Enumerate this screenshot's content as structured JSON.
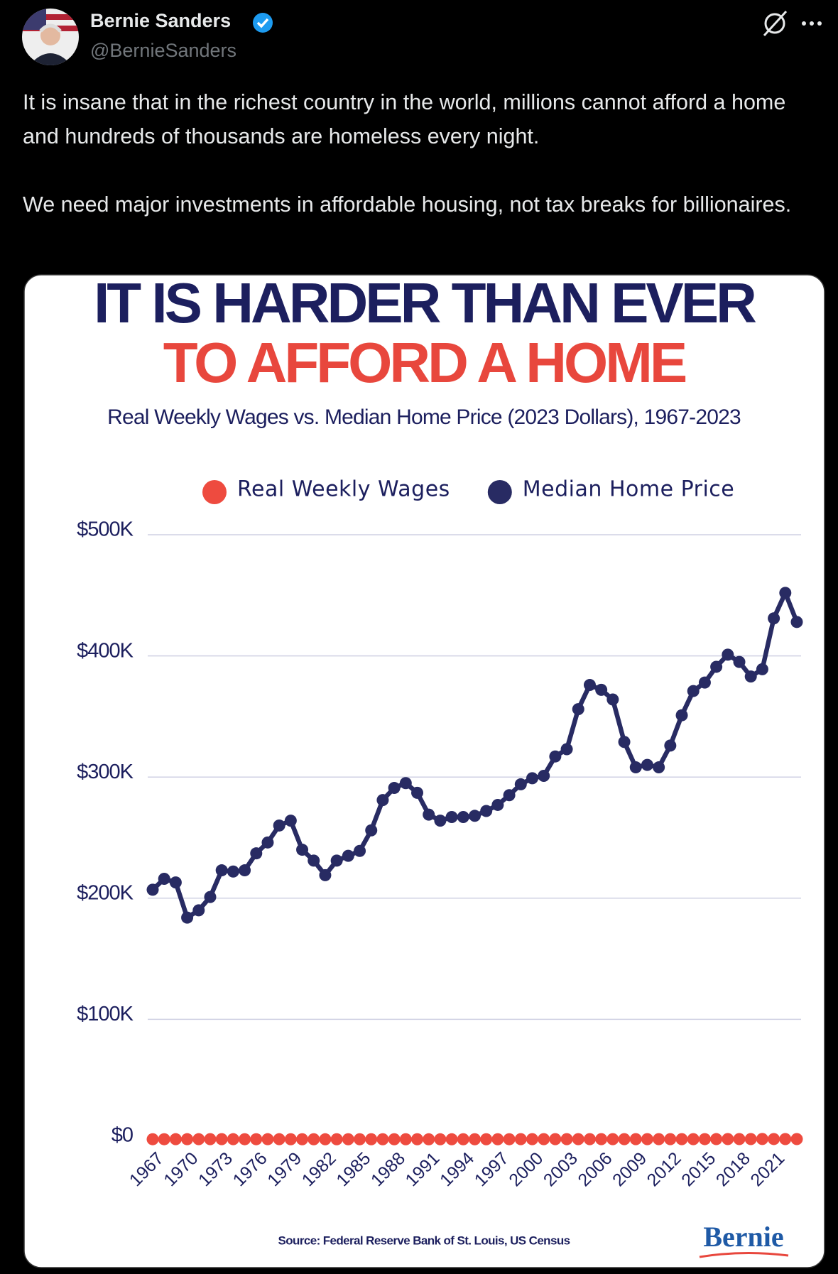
{
  "tweet": {
    "name": "Bernie Sanders",
    "handle": "@BernieSanders",
    "text": [
      "It is insane that in the richest country in the world, millions cannot afford a home and hundreds of thousands are homeless every night.",
      "We need major investments in affordable housing, not tax breaks for billionaires."
    ]
  },
  "chart_data": {
    "type": "line",
    "title": [
      "IT IS HARDER THAN EVER",
      "TO AFFORD A HOME"
    ],
    "subtitle": "Real Weekly Wages vs. Median Home Price (2023 Dollars), 1967-2023",
    "x": [
      1967,
      1968,
      1969,
      1970,
      1971,
      1972,
      1973,
      1974,
      1975,
      1976,
      1977,
      1978,
      1979,
      1980,
      1981,
      1982,
      1983,
      1984,
      1985,
      1986,
      1987,
      1988,
      1989,
      1990,
      1991,
      1992,
      1993,
      1994,
      1995,
      1996,
      1997,
      1998,
      1999,
      2000,
      2001,
      2002,
      2003,
      2004,
      2005,
      2006,
      2007,
      2008,
      2009,
      2010,
      2011,
      2012,
      2013,
      2014,
      2015,
      2016,
      2017,
      2018,
      2019,
      2020,
      2021,
      2022,
      2023
    ],
    "xlim": [
      1967,
      2023
    ],
    "xticks": [
      1967,
      1970,
      1973,
      1976,
      1979,
      1982,
      1985,
      1988,
      1991,
      1994,
      1997,
      2000,
      2003,
      2006,
      2009,
      2012,
      2015,
      2018,
      2021
    ],
    "ylim": [
      0,
      500000
    ],
    "yticks": [
      {
        "value": 0,
        "label": "$0"
      },
      {
        "value": 100000,
        "label": "$100K"
      },
      {
        "value": 200000,
        "label": "$200K"
      },
      {
        "value": 300000,
        "label": "$300K"
      },
      {
        "value": 400000,
        "label": "$400K"
      },
      {
        "value": 500000,
        "label": "$500K"
      }
    ],
    "grid": true,
    "legend": "top",
    "series": [
      {
        "name": "Real Weekly Wages",
        "color": "#ee4b3f",
        "markers_only": true,
        "values": [
          1050,
          1060,
          1070,
          1065,
          1075,
          1090,
          1100,
          1070,
          1050,
          1060,
          1065,
          1070,
          1040,
          1010,
          1005,
          1000,
          1010,
          1020,
          1025,
          1040,
          1035,
          1030,
          1020,
          1005,
          995,
          1000,
          1000,
          1005,
          1005,
          1010,
          1030,
          1060,
          1080,
          1090,
          1100,
          1110,
          1110,
          1105,
          1100,
          1100,
          1105,
          1095,
          1120,
          1120,
          1110,
          1105,
          1105,
          1110,
          1130,
          1140,
          1150,
          1155,
          1175,
          1230,
          1200,
          1150,
          1160
        ]
      },
      {
        "name": "Median Home Price",
        "color": "#282b63",
        "values": [
          207000,
          216000,
          213000,
          184000,
          190000,
          201000,
          223000,
          222000,
          223000,
          237000,
          246000,
          260000,
          264000,
          240000,
          231000,
          219000,
          231000,
          235000,
          239000,
          256000,
          281000,
          291000,
          295000,
          287000,
          269000,
          264000,
          267000,
          267000,
          268000,
          272000,
          277000,
          285000,
          294000,
          299000,
          301000,
          317000,
          323000,
          356000,
          376000,
          372000,
          364000,
          329000,
          308000,
          310000,
          308000,
          326000,
          351000,
          371000,
          378000,
          391000,
          401000,
          395000,
          383000,
          389000,
          431000,
          452000,
          428000
        ]
      }
    ],
    "source": "Source: Federal Reserve Bank of St. Louis, US Census",
    "logo": "Bernie"
  }
}
